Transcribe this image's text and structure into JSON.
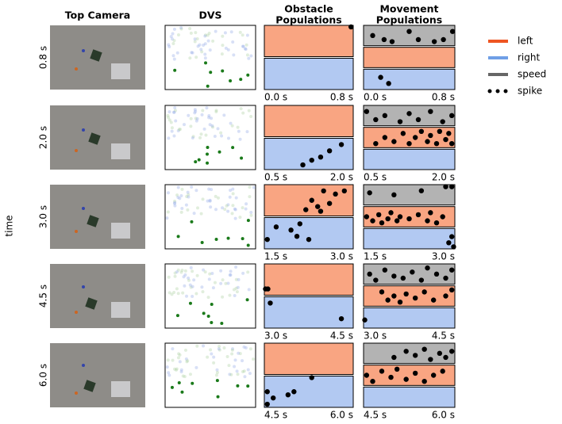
{
  "chart_data": {
    "type": "spike-raster",
    "columns": [
      [
        "Top Camera"
      ],
      [
        "DVS"
      ],
      [
        "Obstacle",
        "Populations"
      ],
      [
        "Movement",
        "Populations"
      ]
    ],
    "y_label": "time",
    "legend": [
      {
        "name": "left",
        "color": "#ee5522",
        "band_color": "#f9a582"
      },
      {
        "name": "right",
        "color": "#6f9fe6",
        "band_color": "#b2c9f2"
      },
      {
        "name": "speed",
        "color": "#666666",
        "band_color": "#b3b3b3"
      },
      {
        "name": "spike",
        "color": "#000000"
      }
    ],
    "rows": [
      {
        "label": "0.8 s",
        "xlim": [
          0.0,
          0.8
        ],
        "xticks": [
          {
            "value": 0.0,
            "label": "0.0 s"
          },
          {
            "value": 0.8,
            "label": "0.8 s"
          }
        ],
        "obstacle": {
          "left": [
            [
              0.78,
              0.95
            ]
          ],
          "right": []
        },
        "movement": {
          "speed": [
            [
              0.08,
              0.5
            ],
            [
              0.18,
              0.3
            ],
            [
              0.25,
              0.2
            ],
            [
              0.4,
              0.7
            ],
            [
              0.48,
              0.3
            ],
            [
              0.62,
              0.2
            ],
            [
              0.7,
              0.3
            ],
            [
              0.78,
              0.7
            ]
          ],
          "left": [],
          "right": [
            [
              0.15,
              0.6
            ],
            [
              0.22,
              0.3
            ]
          ]
        }
      },
      {
        "label": "2.0 s",
        "xlim": [
          0.5,
          2.0
        ],
        "xticks": [
          {
            "value": 0.5,
            "label": "0.5 s"
          },
          {
            "value": 2.0,
            "label": "2.0 s"
          }
        ],
        "obstacle": {
          "left": [],
          "right": [
            [
              1.15,
              0.15
            ],
            [
              1.3,
              0.3
            ],
            [
              1.45,
              0.4
            ],
            [
              1.6,
              0.6
            ],
            [
              1.8,
              0.8
            ]
          ]
        },
        "movement": {
          "speed": [
            [
              0.55,
              0.7
            ],
            [
              0.7,
              0.3
            ],
            [
              0.85,
              0.5
            ],
            [
              1.1,
              0.2
            ],
            [
              1.25,
              0.6
            ],
            [
              1.4,
              0.3
            ],
            [
              1.6,
              0.7
            ],
            [
              1.8,
              0.2
            ],
            [
              1.95,
              0.5
            ]
          ],
          "left": [
            [
              0.7,
              0.2
            ],
            [
              0.85,
              0.5
            ],
            [
              1.0,
              0.3
            ],
            [
              1.15,
              0.7
            ],
            [
              1.25,
              0.2
            ],
            [
              1.35,
              0.5
            ],
            [
              1.45,
              0.8
            ],
            [
              1.55,
              0.3
            ],
            [
              1.6,
              0.6
            ],
            [
              1.7,
              0.2
            ],
            [
              1.75,
              0.8
            ],
            [
              1.85,
              0.4
            ],
            [
              1.9,
              0.7
            ],
            [
              1.95,
              0.2
            ]
          ],
          "right": []
        }
      },
      {
        "label": "3.0 s",
        "xlim": [
          1.5,
          3.0
        ],
        "xticks": [
          {
            "value": 1.5,
            "label": "1.5 s"
          },
          {
            "value": 3.0,
            "label": "3.0 s"
          }
        ],
        "obstacle": {
          "left": [
            [
              2.2,
              0.2
            ],
            [
              2.3,
              0.5
            ],
            [
              2.4,
              0.3
            ],
            [
              2.5,
              0.8
            ],
            [
              2.6,
              0.4
            ],
            [
              2.7,
              0.7
            ],
            [
              2.85,
              0.8
            ],
            [
              2.45,
              0.15
            ]
          ],
          "right": [
            [
              1.55,
              0.3
            ],
            [
              1.7,
              0.7
            ],
            [
              1.95,
              0.6
            ],
            [
              2.05,
              0.4
            ],
            [
              2.1,
              0.8
            ],
            [
              2.25,
              0.3
            ]
          ]
        },
        "movement": {
          "speed": [
            [
              1.6,
              0.6
            ],
            [
              2.0,
              0.5
            ],
            [
              2.45,
              0.7
            ],
            [
              2.85,
              0.9
            ],
            [
              2.95,
              0.9
            ]
          ],
          "left": [
            [
              1.55,
              0.5
            ],
            [
              1.65,
              0.3
            ],
            [
              1.75,
              0.6
            ],
            [
              1.8,
              0.2
            ],
            [
              1.9,
              0.4
            ],
            [
              1.95,
              0.7
            ],
            [
              2.05,
              0.3
            ],
            [
              2.1,
              0.5
            ],
            [
              2.25,
              0.4
            ],
            [
              2.4,
              0.6
            ],
            [
              2.55,
              0.3
            ],
            [
              2.6,
              0.7
            ],
            [
              2.7,
              0.2
            ],
            [
              2.8,
              0.5
            ]
          ],
          "right": [
            [
              2.9,
              0.3
            ],
            [
              2.95,
              0.6
            ],
            [
              2.98,
              0.1
            ]
          ]
        }
      },
      {
        "label": "4.5 s",
        "xlim": [
          3.0,
          4.5
        ],
        "xticks": [
          {
            "value": 3.0,
            "label": "3.0 s"
          },
          {
            "value": 4.5,
            "label": "4.5 s"
          }
        ],
        "obstacle": {
          "left": [
            [
              3.02,
              0.2
            ],
            [
              3.06,
              0.2
            ]
          ],
          "right": [
            [
              3.1,
              0.8
            ],
            [
              4.3,
              0.3
            ]
          ]
        },
        "movement": {
          "speed": [
            [
              3.1,
              0.5
            ],
            [
              3.2,
              0.2
            ],
            [
              3.35,
              0.7
            ],
            [
              3.5,
              0.4
            ],
            [
              3.65,
              0.3
            ],
            [
              3.8,
              0.6
            ],
            [
              3.95,
              0.2
            ],
            [
              4.05,
              0.8
            ],
            [
              4.2,
              0.5
            ],
            [
              4.35,
              0.3
            ],
            [
              4.45,
              0.7
            ]
          ],
          "left": [
            [
              3.3,
              0.7
            ],
            [
              3.4,
              0.3
            ],
            [
              3.5,
              0.5
            ],
            [
              3.6,
              0.2
            ],
            [
              3.7,
              0.6
            ],
            [
              3.85,
              0.4
            ],
            [
              4.0,
              0.7
            ],
            [
              4.15,
              0.3
            ],
            [
              4.35,
              0.5
            ],
            [
              4.45,
              0.8
            ]
          ],
          "right": [
            [
              3.02,
              0.4
            ]
          ]
        }
      },
      {
        "label": "6.0 s",
        "xlim": [
          4.5,
          6.0
        ],
        "xticks": [
          {
            "value": 4.5,
            "label": "4.5 s"
          },
          {
            "value": 6.0,
            "label": "6.0 s"
          }
        ],
        "obstacle": {
          "left": [],
          "right": [
            [
              4.55,
              0.5
            ],
            [
              4.65,
              0.3
            ],
            [
              4.9,
              0.4
            ],
            [
              5.0,
              0.5
            ],
            [
              5.3,
              0.95
            ],
            [
              4.55,
              0.1
            ]
          ]
        },
        "movement": {
          "speed": [
            [
              5.0,
              0.3
            ],
            [
              5.2,
              0.6
            ],
            [
              5.35,
              0.4
            ],
            [
              5.5,
              0.7
            ],
            [
              5.6,
              0.2
            ],
            [
              5.75,
              0.5
            ],
            [
              5.85,
              0.3
            ],
            [
              5.95,
              0.6
            ]
          ],
          "left": [
            [
              4.55,
              0.5
            ],
            [
              4.65,
              0.2
            ],
            [
              4.8,
              0.7
            ],
            [
              4.95,
              0.4
            ],
            [
              5.05,
              0.8
            ],
            [
              5.2,
              0.3
            ],
            [
              5.35,
              0.6
            ],
            [
              5.5,
              0.2
            ],
            [
              5.65,
              0.5
            ],
            [
              5.8,
              0.7
            ]
          ],
          "right": []
        }
      }
    ]
  }
}
